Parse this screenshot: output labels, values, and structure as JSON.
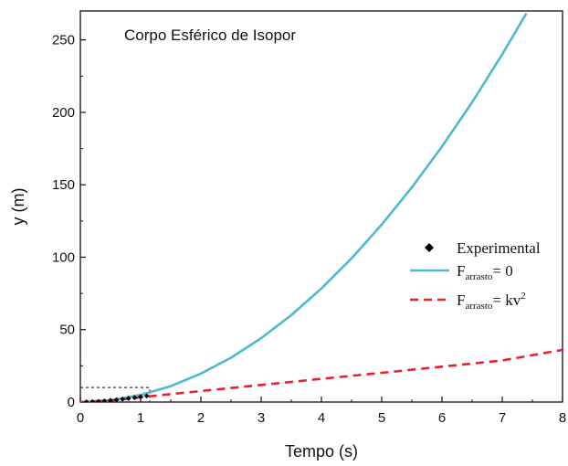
{
  "chart_data": {
    "type": "line",
    "title": "Corpo Esférico de Isopor",
    "xlabel": "Tempo (s)",
    "ylabel": "y (m)",
    "xlim": [
      0,
      8
    ],
    "ylim": [
      0,
      270
    ],
    "x_ticks": [
      "0",
      "1",
      "2",
      "3",
      "4",
      "5",
      "6",
      "7",
      "8"
    ],
    "y_ticks": [
      "0",
      "50",
      "100",
      "150",
      "200",
      "250"
    ],
    "grid": false,
    "legend_position": "right",
    "series": [
      {
        "name": "Experimental",
        "style": "markers",
        "color": "#000000",
        "x": [
          0.1,
          0.2,
          0.3,
          0.4,
          0.5,
          0.6,
          0.7,
          0.8,
          0.9,
          1.0,
          1.1
        ],
        "y": [
          0.05,
          0.2,
          0.4,
          0.75,
          1.1,
          1.5,
          2.0,
          2.5,
          3.0,
          3.6,
          4.2
        ]
      },
      {
        "name": "F_arrasto = 0",
        "style": "solid",
        "color": "#4db8cf",
        "x": [
          0,
          0.5,
          1,
          1.5,
          2,
          2.5,
          3,
          3.5,
          4,
          4.5,
          5,
          5.5,
          6,
          6.5,
          7,
          7.4
        ],
        "y": [
          0,
          1.2,
          4.9,
          11.0,
          19.6,
          30.6,
          44.1,
          60.0,
          78.4,
          99.2,
          122.5,
          148.2,
          176.4,
          207.0,
          240.1,
          268.3
        ]
      },
      {
        "name": "F_arrasto = kv²",
        "style": "dashed",
        "color": "#e8212f",
        "x": [
          0,
          0.5,
          1,
          1.5,
          2,
          3,
          4,
          5,
          6,
          7,
          8
        ],
        "y": [
          0,
          1.0,
          3.3,
          5.5,
          7.6,
          11.8,
          16.0,
          20.2,
          24.4,
          28.7,
          36.0
        ]
      }
    ],
    "annotations": [
      {
        "type": "dotted-box",
        "x_to": 1.15,
        "y_to": 10
      }
    ]
  },
  "legend": {
    "experimental": "Experimental",
    "f0_main": "F",
    "f0_sub": "arrasto",
    "f0_rest": "= 0",
    "fk_main": "F",
    "fk_sub": "arrasto",
    "fk_rest": "= kv",
    "fk_sup": "2"
  }
}
